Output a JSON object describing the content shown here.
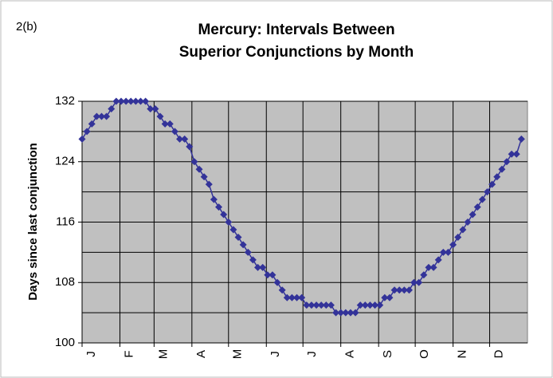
{
  "chart_data": {
    "type": "line",
    "panel_label": "2(b)",
    "title": [
      "Mercury: Intervals Between",
      "Superior Conjunctions by Month"
    ],
    "y_label": "Days since last conjunction",
    "color": "#333399",
    "grid": true,
    "xlim": [
      0,
      365
    ],
    "xticks": [
      {
        "value": 0,
        "label": "J"
      },
      {
        "value": 31,
        "label": "F"
      },
      {
        "value": 59,
        "label": "M"
      },
      {
        "value": 90,
        "label": "A"
      },
      {
        "value": 120,
        "label": "M"
      },
      {
        "value": 151,
        "label": "J"
      },
      {
        "value": 181,
        "label": "J"
      },
      {
        "value": 212,
        "label": "A"
      },
      {
        "value": 243,
        "label": "S"
      },
      {
        "value": 273,
        "label": "O"
      },
      {
        "value": 304,
        "label": "N"
      },
      {
        "value": 334,
        "label": "D"
      }
    ],
    "ylim": [
      100,
      132
    ],
    "yticks": [
      100,
      108,
      116,
      124,
      132
    ],
    "minor_yticks": [
      104,
      112,
      120,
      128
    ],
    "x": [
      0,
      4,
      8,
      12,
      16,
      20,
      24,
      28,
      32,
      36,
      40,
      44,
      48,
      52,
      56,
      60,
      64,
      68,
      72,
      76,
      80,
      84,
      88,
      92,
      96,
      100,
      104,
      108,
      112,
      116,
      120,
      124,
      128,
      132,
      136,
      140,
      144,
      148,
      152,
      156,
      160,
      164,
      168,
      172,
      176,
      180,
      184,
      188,
      192,
      196,
      200,
      204,
      208,
      212,
      216,
      220,
      224,
      228,
      232,
      236,
      240,
      244,
      248,
      252,
      256,
      260,
      264,
      268,
      272,
      276,
      280,
      284,
      288,
      292,
      296,
      300,
      304,
      308,
      312,
      316,
      320,
      324,
      328,
      332,
      336,
      340,
      344,
      348,
      352,
      356,
      360
    ],
    "values": [
      127,
      128,
      129,
      130,
      130,
      130,
      131,
      132,
      132,
      132,
      132,
      132,
      132,
      132,
      131,
      131,
      130,
      129,
      129,
      128,
      127,
      127,
      126,
      124,
      123,
      122,
      121,
      119,
      118,
      117,
      116,
      115,
      114,
      113,
      112,
      111,
      110,
      110,
      109,
      109,
      108,
      107,
      106,
      106,
      106,
      106,
      105,
      105,
      105,
      105,
      105,
      105,
      104,
      104,
      104,
      104,
      104,
      105,
      105,
      105,
      105,
      105,
      106,
      106,
      107,
      107,
      107,
      107,
      108,
      108,
      109,
      110,
      110,
      111,
      112,
      112,
      113,
      114,
      115,
      116,
      117,
      118,
      119,
      120,
      121,
      122,
      123,
      124,
      125,
      125,
      127
    ]
  }
}
